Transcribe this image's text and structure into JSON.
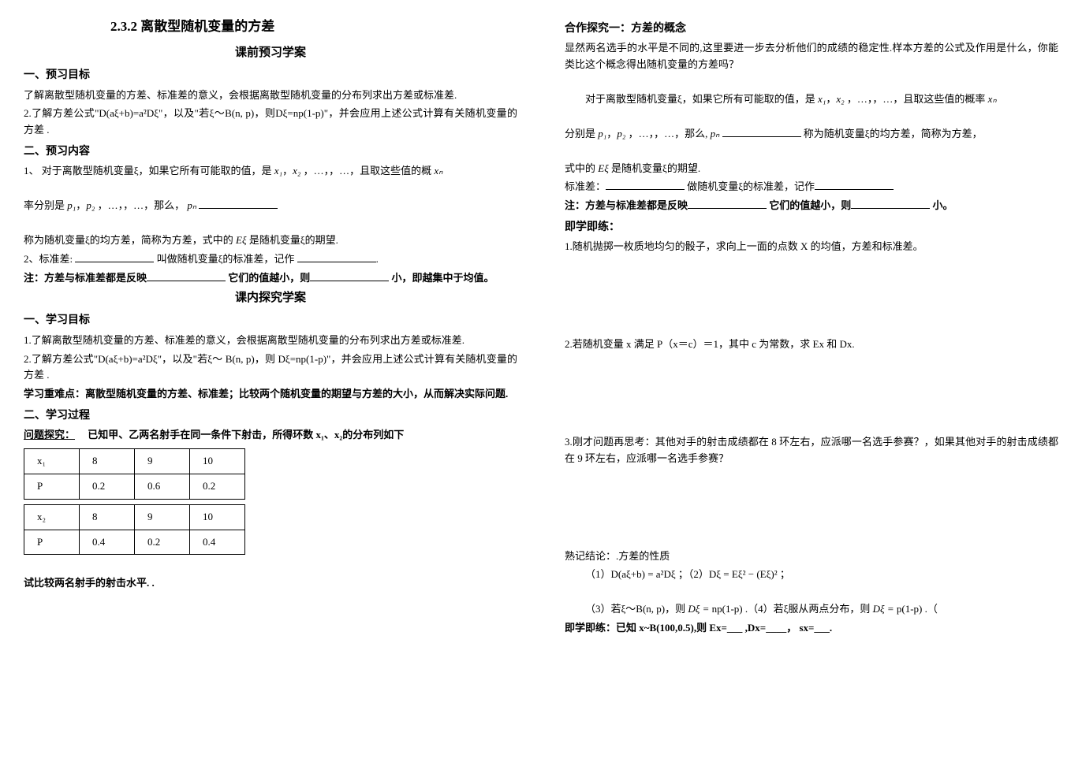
{
  "title": "2.3.2 离散型随机变量的方差",
  "preSubtitle": "课前预习学案",
  "preGoalHeader": "一、预习目标",
  "preGoal1": "了解离散型随机变量的方差、标准差的意义，会根据离散型随机变量的分布列求出方差或标准差.",
  "preGoal2": "2.了解方差公式\"D(aξ+b)=a²Dξ\"，以及\"若ξ～B(n, p)，则Dξ=np(1-p)\"，并会应用上述公式计算有关随机变量的方差 .",
  "preContentHeader": "二、预习内容",
  "preContent1": "1、 对于离散型随机变量ξ，如果它所有可能取的值，是",
  "preContent1b": "，…，，…，且取这些值的概",
  "preContent2a": "率分别是",
  "preContent2b": "，…，，…，那么，",
  "preContent3a": "称为随机变量ξ的均方差，简称为方差，式中的",
  "preContent3b": "是随机变量ξ的期望.",
  "preContent4a": "2、标准差:",
  "preContent4b": "叫做随机变量ξ的标准差，记作",
  "noteLabel": "注：方差与标准差都是反映",
  "noteMid": "它们的值越小，则",
  "noteEnd": "小，即越集中于均值。",
  "inSubtitle": "课内探究学案",
  "studyGoalHeader": "一、学习目标",
  "studyGoal1": "1.了解离散型随机变量的方差、标准差的意义，会根据离散型随机变量的分布列求出方差或标准差.",
  "studyGoal2": "2.了解方差公式\"D(aξ+b)=a²Dξ\"，以及\"若ξ～ B(n, p)，则 Dξ=np(1-p)\"，并会应用上述公式计算有关随机变量的方差 .",
  "keyPoint": "学习重难点：离散型随机变量的方差、标准差；比较两个随机变量的期望与方差的大小，从而解决实际问题.",
  "processHeader": "二、学习过程",
  "exploreLabel": "问题探究：",
  "exploreText": "已知甲、乙两名射手在同一条件下射击，所得环数 x₁、x₂的分布列如下",
  "table1": {
    "row1": [
      "x₁",
      "8",
      "9",
      "10"
    ],
    "row2": [
      "P",
      "0.2",
      "0.6",
      "0.2"
    ]
  },
  "table2": {
    "row1": [
      "x₂",
      "8",
      "9",
      "10"
    ],
    "row2": [
      "P",
      "0.4",
      "0.2",
      "0.4"
    ]
  },
  "compareText": "试比较两名射手的射击水平.   .",
  "coopHeader": "合作探究一：方差的概念",
  "coopText": "显然两名选手的水平是不同的,这里要进一步去分析他们的成绩的稳定性.样本方差的公式及作用是什么，你能类比这个概念得出随机变量的方差吗？",
  "coopContent1a": "对于离散型随机变量ξ，如果它所有可能取的值，是",
  "coopContent1b": "，…，，…，且取这些值的概率",
  "coopContent2a": "分别是",
  "coopContent2b": "，…，，…，那么,",
  "coopContent2c": "称为随机变量ξ的均方差，简称为方差，",
  "coopContent3a": "式中的",
  "coopContent3b": "是随机变量ξ的期望.",
  "stdDev": "标准差：",
  "stdDevMid": "做随机变量ξ的标准差，记作",
  "note2Label": "注：方差与标准差都是反映",
  "note2Mid": "它们的值越小，则",
  "note2End": "小。",
  "practiceHeader": "即学即练：",
  "practice1": "1.随机抛掷一枚质地均匀的骰子，求向上一面的点数 X 的均值，方差和标准差。",
  "practice2": "2.若随机变量 x 满足 P（x＝c）＝1，其中 c 为常数，求 Ex 和 Dx.",
  "practice3": "3.刚才问题再思考：其他对手的射击成绩都在 8 环左右，应派哪一名选手参赛？，如果其他对手的射击成绩都在 9 环左右，应派哪一名选手参赛？",
  "conclusionHeader": "熟记结论：.方差的性质",
  "formula1": "（1）D(aξ+b) = a²Dξ ；（2）Dξ = Eξ² − (Eξ)² ；",
  "formula2a": "（3）若ξ～B(n, p)，则",
  "formula2b": "np(1-p) .（4）若ξ服从两点分布，则",
  "formula2c": "p(1-p) .（",
  "finalPractice": "即学即练：已知 x~B(100,0.5),则 Ex=___  ,Dx=____，  sx=___.",
  "x1": "x₁",
  "x2": "x₂",
  "xn": "xₙ",
  "p1": "p₁",
  "p2": "p₂",
  "pn": "pₙ",
  "Exi": "Eξ",
  "Dxi": "Dξ ="
}
